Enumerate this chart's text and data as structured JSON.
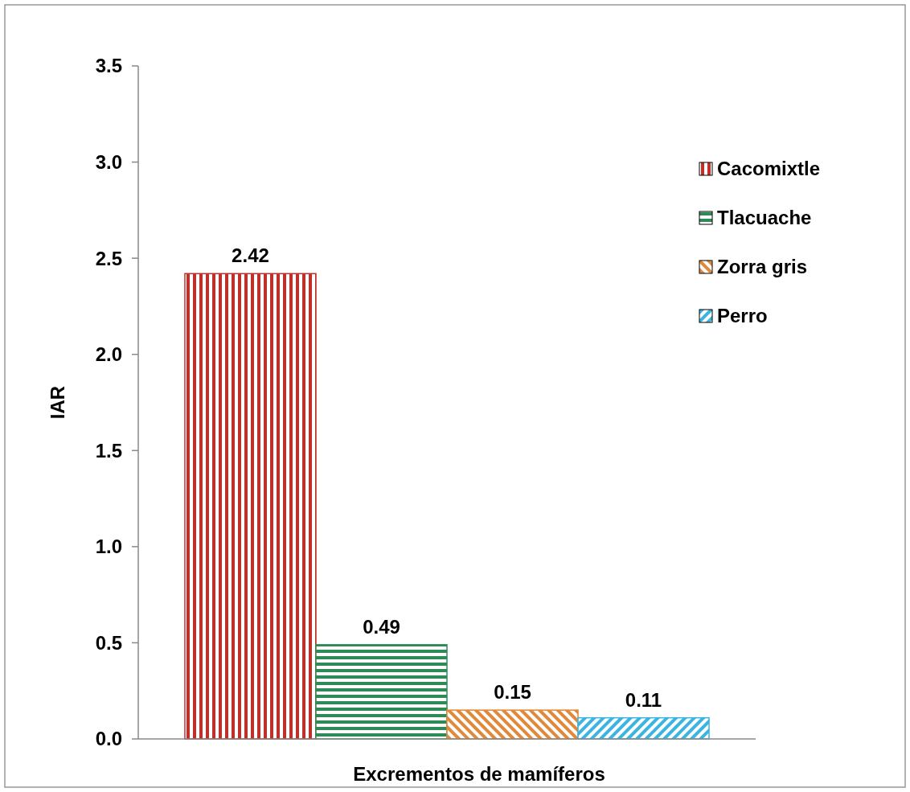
{
  "chart_data": {
    "type": "bar",
    "xlabel": "Excrementos de mamíferos",
    "ylabel": "IAR",
    "categories": [
      null
    ],
    "series": [
      {
        "name": "Cacomixtle",
        "color": "#c0302a",
        "values": [
          2.42
        ]
      },
      {
        "name": "Tlacuache",
        "color": "#2e8b57",
        "values": [
          0.49
        ]
      },
      {
        "name": "Zorra gris",
        "color": "#e0893a",
        "values": [
          0.15
        ]
      },
      {
        "name": "Perro",
        "color": "#3cb4e0",
        "values": [
          0.11
        ]
      }
    ],
    "ylim": [
      0,
      3.5
    ],
    "yticks": [
      {
        "value": 0,
        "label": "0.0"
      },
      {
        "value": 0.5,
        "label": "0.5"
      },
      {
        "value": 1,
        "label": "1.0"
      },
      {
        "value": 1.5,
        "label": "1.5"
      },
      {
        "value": 2,
        "label": "2.0"
      },
      {
        "value": 2.5,
        "label": "2.5"
      },
      {
        "value": 3,
        "label": "3.0"
      },
      {
        "value": 3.5,
        "label": "3.5"
      }
    ],
    "grid": false,
    "legend": "top right",
    "data_labels": true
  }
}
